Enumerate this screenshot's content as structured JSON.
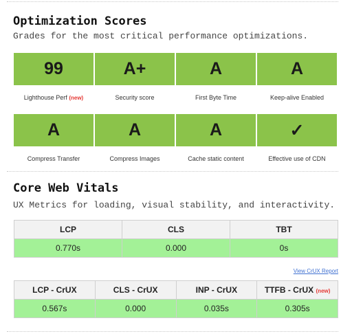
{
  "optimization": {
    "title": "Optimization Scores",
    "subtitle": "Grades for the most critical performance optimizations.",
    "row1": [
      {
        "grade": "99",
        "label": "Lighthouse Perf",
        "badge": "(new)"
      },
      {
        "grade": "A+",
        "label": "Security score"
      },
      {
        "grade": "A",
        "label": "First Byte Time"
      },
      {
        "grade": "A",
        "label": "Keep-alive Enabled"
      }
    ],
    "row2": [
      {
        "grade": "A",
        "label": "Compress Transfer"
      },
      {
        "grade": "A",
        "label": "Compress Images"
      },
      {
        "grade": "A",
        "label": "Cache static content"
      },
      {
        "grade": "✓",
        "label": "Effective use of CDN"
      }
    ],
    "grade_color": "#8bc34a"
  },
  "vitals": {
    "title": "Core Web Vitals",
    "subtitle": "UX Metrics for loading, visual stability, and interactivity.",
    "lab": {
      "headers": [
        "LCP",
        "CLS",
        "TBT"
      ],
      "values": [
        "0.770s",
        "0.000",
        "0s"
      ]
    },
    "crux_link": "View CrUX Report",
    "crux": {
      "headers": [
        "LCP - CrUX",
        "CLS - CrUX",
        "INP - CrUX",
        "TTFB - CrUX"
      ],
      "ttfb_badge": "(new)",
      "values": [
        "0.567s",
        "0.000",
        "0.035s",
        "0.305s"
      ]
    },
    "good_color": "#a3f197"
  }
}
